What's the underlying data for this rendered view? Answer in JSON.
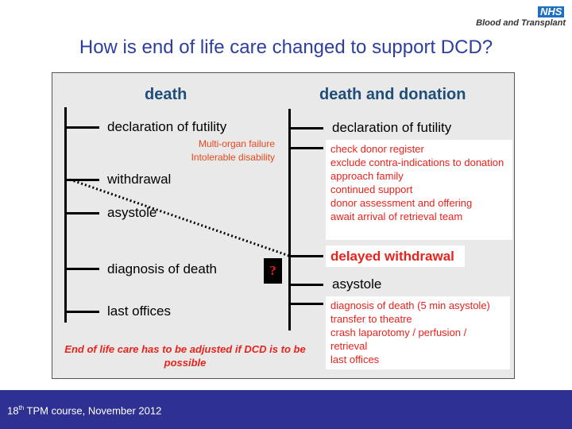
{
  "logo": {
    "nhs": "NHS",
    "org": "Blood and Transplant"
  },
  "title": "How is end of life care changed to support DCD?",
  "left": {
    "header": "death",
    "steps": [
      "declaration of futility",
      "withdrawal",
      "asystole",
      "diagnosis of death",
      "last offices"
    ],
    "notes": [
      "Multi-organ failure",
      "Intolerable disability"
    ]
  },
  "right": {
    "header": "death and donation",
    "step1": "declaration of futility",
    "box1": [
      "check donor register",
      "exclude contra-indications to donation",
      "approach family",
      "continued support",
      "donor assessment and offering",
      "await arrival of retrieval team"
    ],
    "step2": "delayed withdrawal",
    "step3": "asystole",
    "box2": [
      "diagnosis of death (5 min asystole)",
      "transfer to theatre",
      "crash laparotomy / perfusion / retrieval",
      "last offices"
    ]
  },
  "question_mark": "?",
  "caption": "End of life care has to be adjusted if DCD is to be possible",
  "footer": {
    "num": "18",
    "sup": "th",
    "text": " TPM course, November 2012"
  }
}
